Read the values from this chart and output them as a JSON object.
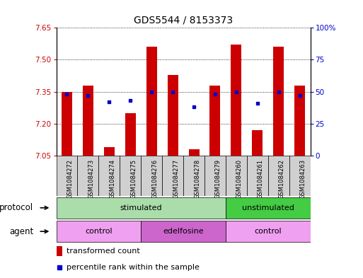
{
  "title": "GDS5544 / 8153373",
  "samples": [
    "GSM1084272",
    "GSM1084273",
    "GSM1084274",
    "GSM1084275",
    "GSM1084276",
    "GSM1084277",
    "GSM1084278",
    "GSM1084279",
    "GSM1084260",
    "GSM1084261",
    "GSM1084262",
    "GSM1084263"
  ],
  "bar_values": [
    7.35,
    7.38,
    7.09,
    7.25,
    7.56,
    7.43,
    7.08,
    7.38,
    7.57,
    7.17,
    7.56,
    7.38
  ],
  "dot_values": [
    48,
    47,
    42,
    43,
    50,
    50,
    38,
    48,
    50,
    41,
    50,
    47
  ],
  "ylim_left": [
    7.05,
    7.65
  ],
  "ylim_right": [
    0,
    100
  ],
  "yticks_left": [
    7.05,
    7.2,
    7.35,
    7.5,
    7.65
  ],
  "yticks_right": [
    0,
    25,
    50,
    75,
    100
  ],
  "bar_color": "#cc0000",
  "dot_color": "#0000cc",
  "bar_bottom": 7.05,
  "protocol_groups": [
    {
      "label": "stimulated",
      "start": 0,
      "end": 8,
      "color": "#aaddaa"
    },
    {
      "label": "unstimulated",
      "start": 8,
      "end": 12,
      "color": "#44cc44"
    }
  ],
  "agent_groups": [
    {
      "label": "control",
      "start": 0,
      "end": 4,
      "color": "#f0a0f0"
    },
    {
      "label": "edelfosine",
      "start": 4,
      "end": 8,
      "color": "#cc66cc"
    },
    {
      "label": "control",
      "start": 8,
      "end": 12,
      "color": "#f0a0f0"
    }
  ],
  "protocol_label": "protocol",
  "agent_label": "agent",
  "legend_bar_label": "transformed count",
  "legend_dot_label": "percentile rank within the sample",
  "sample_bg_color": "#d0d0d0"
}
